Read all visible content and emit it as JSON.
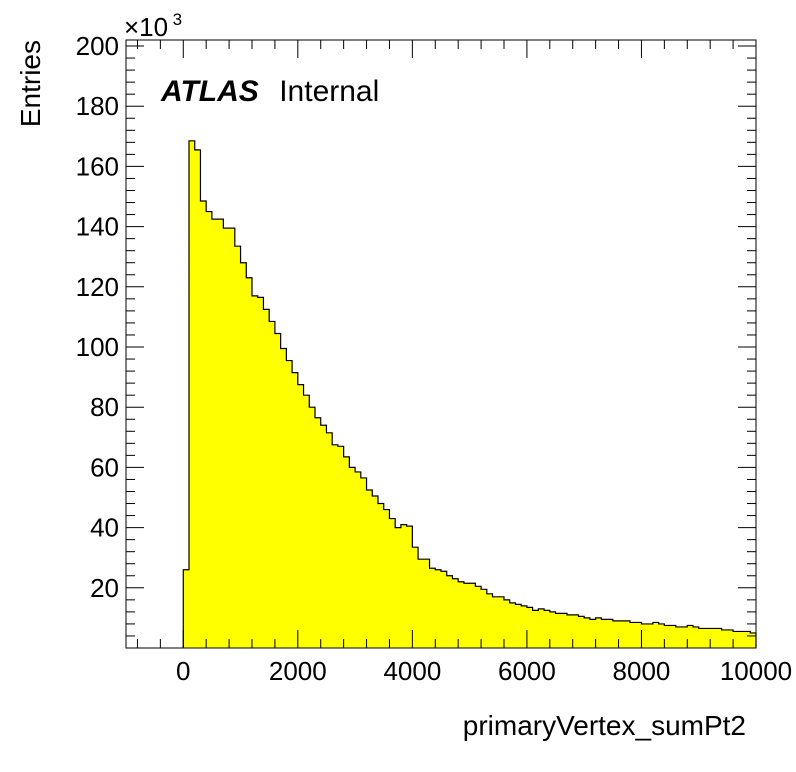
{
  "chart_data": {
    "type": "histogram",
    "xlabel": "primaryVertex_sumPt2",
    "ylabel": "Entries",
    "xlim": [
      -1000,
      10000
    ],
    "ylim": [
      0,
      202
    ],
    "y_multiplier": {
      "base": "×10",
      "exponent": "3"
    },
    "x_ticks": [
      "0",
      "2000",
      "4000",
      "6000",
      "8000",
      "10000"
    ],
    "x_tick_values": [
      0,
      2000,
      4000,
      6000,
      8000,
      10000
    ],
    "y_ticks": [
      "20",
      "40",
      "60",
      "80",
      "100",
      "120",
      "140",
      "160",
      "180",
      "200"
    ],
    "y_tick_values": [
      20,
      40,
      60,
      80,
      100,
      120,
      140,
      160,
      180,
      200
    ],
    "fill_color": "#ffff00",
    "line_color": "#000000",
    "bin_start": 0,
    "bin_width": 100,
    "values": [
      26.0,
      168.5,
      165.5,
      148.5,
      145.0,
      142.5,
      142.5,
      139.5,
      139.5,
      133.5,
      128.0,
      123.0,
      117.0,
      116.5,
      112.5,
      108.5,
      104.5,
      99.5,
      95.5,
      91.5,
      87.5,
      84.0,
      80.0,
      76.5,
      74.0,
      71.5,
      67.5,
      67.0,
      63.5,
      60.0,
      58.5,
      56.5,
      52.5,
      50.5,
      48.0,
      46.0,
      43.0,
      40.0,
      41.0,
      40.5,
      33.5,
      29.5,
      29.5,
      26.5,
      26.0,
      25.5,
      24.0,
      23.0,
      22.0,
      21.5,
      21.5,
      20.5,
      19.5,
      18.0,
      17.0,
      17.0,
      16.0,
      15.0,
      14.5,
      14.0,
      13.5,
      12.5,
      13.0,
      12.5,
      12.0,
      11.5,
      11.5,
      11.0,
      11.0,
      10.5,
      10.0,
      9.5,
      10.0,
      9.5,
      9.5,
      9.0,
      9.0,
      9.0,
      8.5,
      8.5,
      8.0,
      8.0,
      8.5,
      8.0,
      7.5,
      7.5,
      7.0,
      7.0,
      7.5,
      7.0,
      6.5,
      6.5,
      6.5,
      6.5,
      6.0,
      6.0,
      5.5,
      5.5,
      5.5,
      5.0
    ]
  },
  "labels": {
    "atlas": "ATLAS",
    "internal": "Internal"
  }
}
